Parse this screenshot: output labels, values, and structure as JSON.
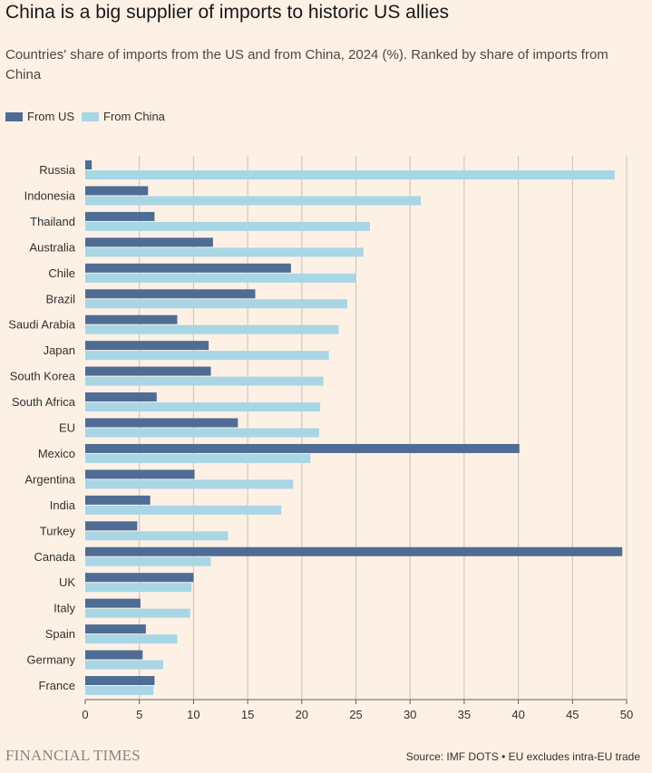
{
  "title": "China is a big supplier of imports to historic US allies",
  "subtitle": "Countries' share of imports from the US and from China, 2024 (%). Ranked by share of imports from China",
  "legend": {
    "us_label": "From US",
    "china_label": "From China"
  },
  "colors": {
    "us": "#4f6c95",
    "china": "#a9d6e5",
    "background": "#fdf1e6",
    "grid": "#ccc1b7",
    "axis": "#66605c"
  },
  "footer": {
    "brand": "FINANCIAL TIMES",
    "source": "Source: IMF DOTS • EU excludes intra-EU trade"
  },
  "chart_data": {
    "type": "bar",
    "orientation": "horizontal",
    "title": "China is a big supplier of imports to historic US allies",
    "xlabel": "",
    "ylabel": "",
    "xlim": [
      0,
      50
    ],
    "xticks": [
      0,
      5,
      10,
      15,
      20,
      25,
      30,
      35,
      40,
      45,
      50
    ],
    "grid": true,
    "legend_position": "top-left",
    "categories": [
      "Russia",
      "Indonesia",
      "Thailand",
      "Australia",
      "Chile",
      "Brazil",
      "Saudi Arabia",
      "Japan",
      "South Korea",
      "South Africa",
      "EU",
      "Mexico",
      "Argentina",
      "India",
      "Turkey",
      "Canada",
      "UK",
      "Italy",
      "Spain",
      "Germany",
      "France"
    ],
    "series": [
      {
        "name": "From US",
        "values": [
          0.6,
          5.8,
          6.4,
          11.8,
          19.0,
          15.7,
          8.5,
          11.4,
          11.6,
          6.6,
          14.1,
          40.1,
          10.1,
          6.0,
          4.8,
          49.6,
          10.0,
          5.1,
          5.6,
          5.3,
          6.4
        ]
      },
      {
        "name": "From China",
        "values": [
          48.9,
          31.0,
          26.3,
          25.7,
          25.0,
          24.2,
          23.4,
          22.5,
          22.0,
          21.7,
          21.6,
          20.8,
          19.2,
          18.1,
          13.2,
          11.6,
          9.8,
          9.7,
          8.5,
          7.2,
          6.3
        ]
      }
    ]
  }
}
